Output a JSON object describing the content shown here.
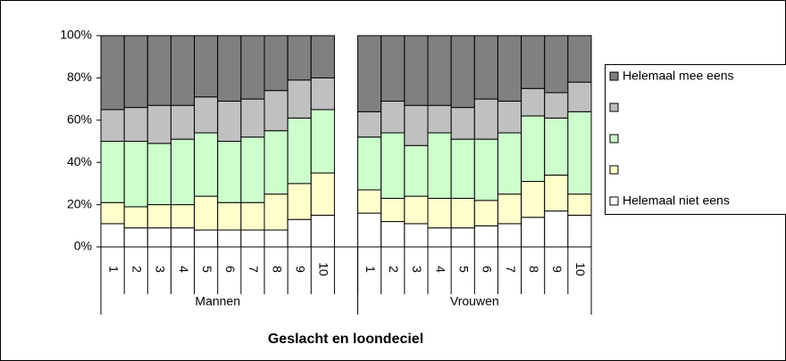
{
  "chart_data": {
    "type": "stacked_bar_100",
    "xlabel": "Geslacht en loondeciel",
    "categories": [
      "1",
      "2",
      "3",
      "4",
      "5",
      "6",
      "7",
      "8",
      "9",
      "10",
      null,
      "1",
      "2",
      "3",
      "4",
      "5",
      "6",
      "7",
      "8",
      "9",
      "10"
    ],
    "groups": [
      "Mannen",
      "Vrouwen"
    ],
    "series": [
      {
        "name": "Helemaal niet eens",
        "color": "#ffffff",
        "values": [
          11,
          9,
          9,
          9,
          8,
          8,
          8,
          8,
          13,
          15,
          null,
          16,
          12,
          11,
          9,
          9,
          10,
          11,
          14,
          17,
          15
        ]
      },
      {
        "name": null,
        "color": "#ffffcc",
        "values": [
          10,
          10,
          11,
          11,
          16,
          13,
          13,
          17,
          17,
          20,
          null,
          11,
          11,
          13,
          14,
          14,
          12,
          14,
          17,
          17,
          10
        ]
      },
      {
        "name": null,
        "color": "#ccffcc",
        "values": [
          29,
          31,
          29,
          31,
          30,
          29,
          31,
          30,
          31,
          30,
          null,
          25,
          31,
          24,
          31,
          28,
          29,
          29,
          31,
          27,
          39
        ]
      },
      {
        "name": null,
        "color": "#c0c0c0",
        "values": [
          15,
          16,
          18,
          16,
          17,
          19,
          18,
          19,
          18,
          15,
          null,
          12,
          15,
          19,
          13,
          15,
          19,
          15,
          13,
          12,
          14
        ]
      },
      {
        "name": "Helemaal mee eens",
        "color": "#808080",
        "values": [
          35,
          34,
          33,
          33,
          29,
          31,
          30,
          26,
          21,
          20,
          null,
          36,
          31,
          33,
          33,
          34,
          30,
          31,
          25,
          27,
          22
        ]
      }
    ],
    "ylim": [
      0,
      100
    ],
    "yticks": [
      {
        "value": 0,
        "label": "0%"
      },
      {
        "value": 20,
        "label": "20%"
      },
      {
        "value": 40,
        "label": "40%"
      },
      {
        "value": 60,
        "label": "60%"
      },
      {
        "value": 80,
        "label": "80%"
      },
      {
        "value": 100,
        "label": "100%"
      }
    ]
  }
}
